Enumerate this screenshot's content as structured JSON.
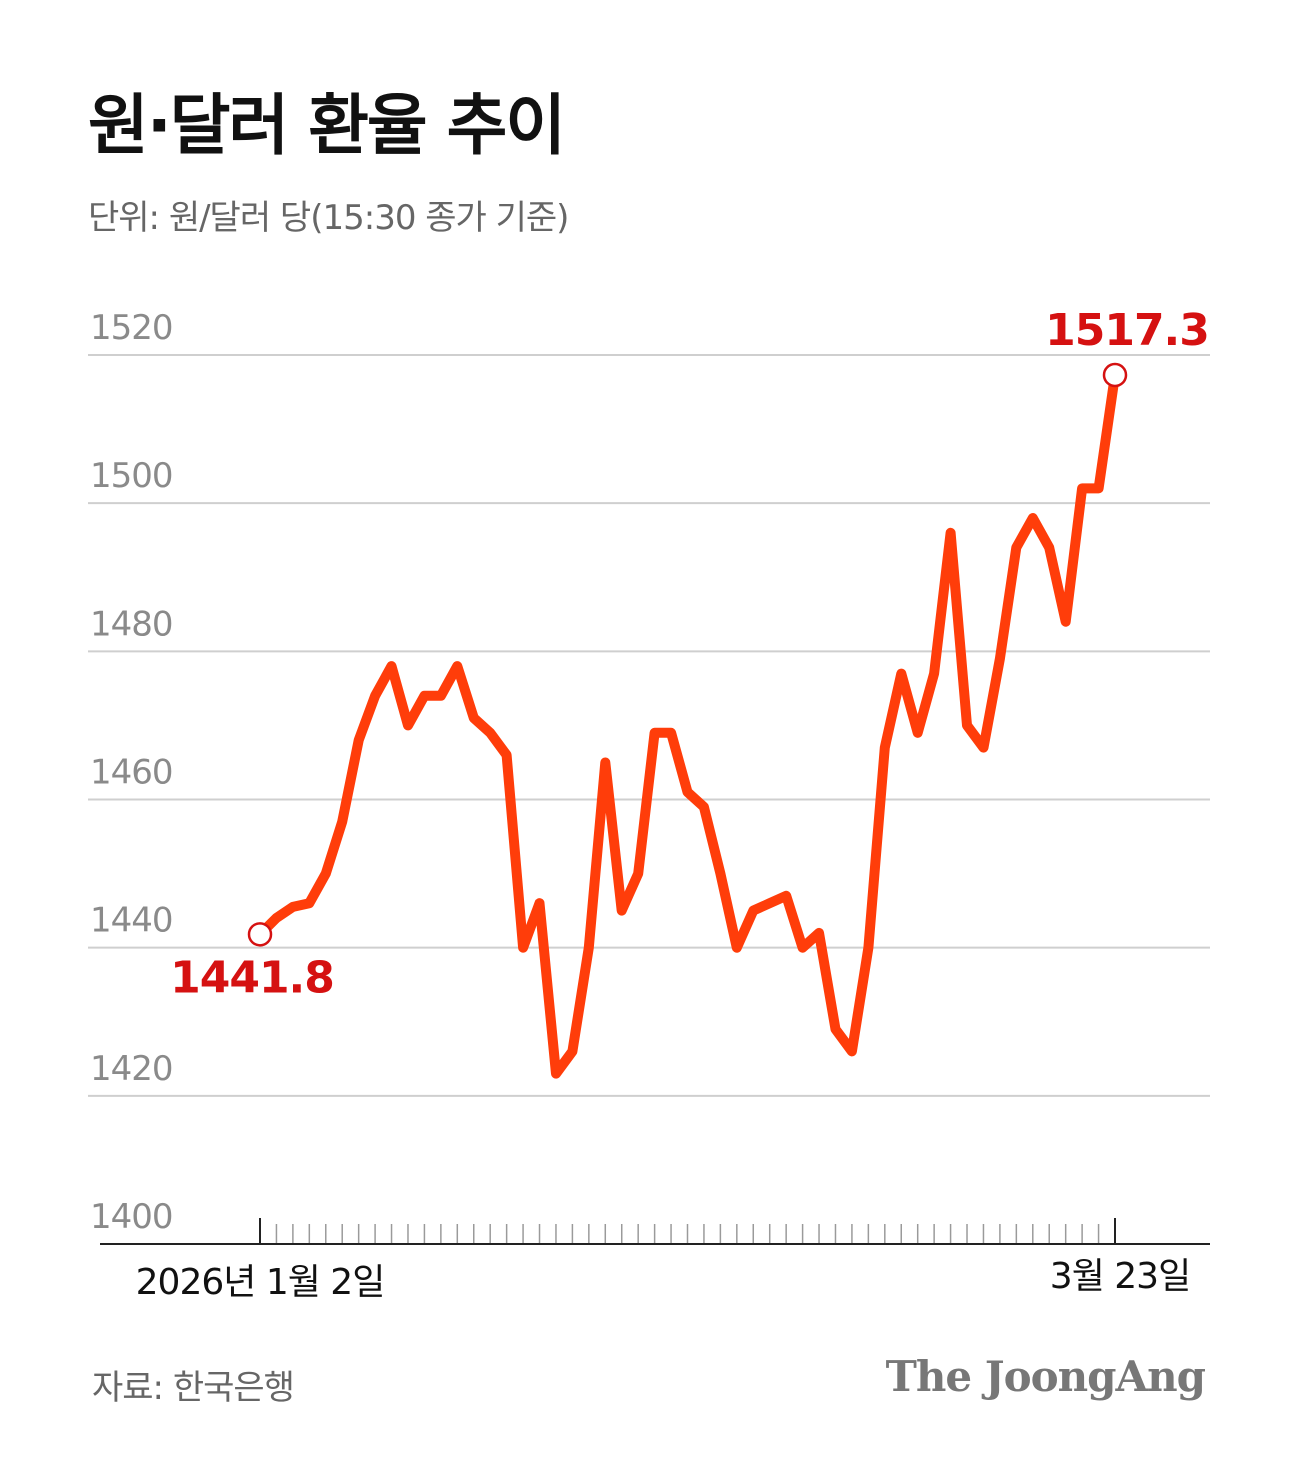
{
  "title": "원·달러 환율 추이",
  "subtitle": "단위: 원/달러 당(15:30 종가 기준)",
  "source": "자료: 한국은행",
  "brand": "The JoongAng",
  "colors": {
    "line": "#ff3d0a",
    "callout": "#d51111",
    "grid": "#cfcfcf",
    "axis": "#222222"
  },
  "chart_data": {
    "type": "line",
    "title": "원·달러 환율 추이",
    "ylabel": "원/달러 당(15:30 종가 기준)",
    "ylim": [
      1400,
      1520
    ],
    "yticks": [
      "1400",
      "1420",
      "1440",
      "1460",
      "1480",
      "1500",
      "1520"
    ],
    "x_labels": {
      "start": "2026년 1월 2일",
      "end": "3월 23일"
    },
    "start_label": "1441.8",
    "end_label": "1517.3",
    "series": [
      {
        "name": "원·달러 환율",
        "values": [
          1441.8,
          1444.0,
          1445.5,
          1446.0,
          1450.0,
          1457.0,
          1468.0,
          1474.0,
          1478.0,
          1470.0,
          1474.0,
          1474.0,
          1478.0,
          1471.0,
          1469.0,
          1466.0,
          1440.0,
          1446.0,
          1423.0,
          1426.0,
          1440.0,
          1465.0,
          1445.0,
          1450.0,
          1469.0,
          1469.0,
          1461.0,
          1459.0,
          1450.0,
          1440.0,
          1445.0,
          1446.0,
          1447.0,
          1440.0,
          1442.0,
          1429.0,
          1426.0,
          1440.0,
          1467.0,
          1477.0,
          1469.0,
          1477.0,
          1496.0,
          1470.0,
          1467.0,
          1479.0,
          1494.0,
          1498.0,
          1494.0,
          1484.0,
          1502.0,
          1502.0,
          1517.3
        ]
      }
    ]
  }
}
